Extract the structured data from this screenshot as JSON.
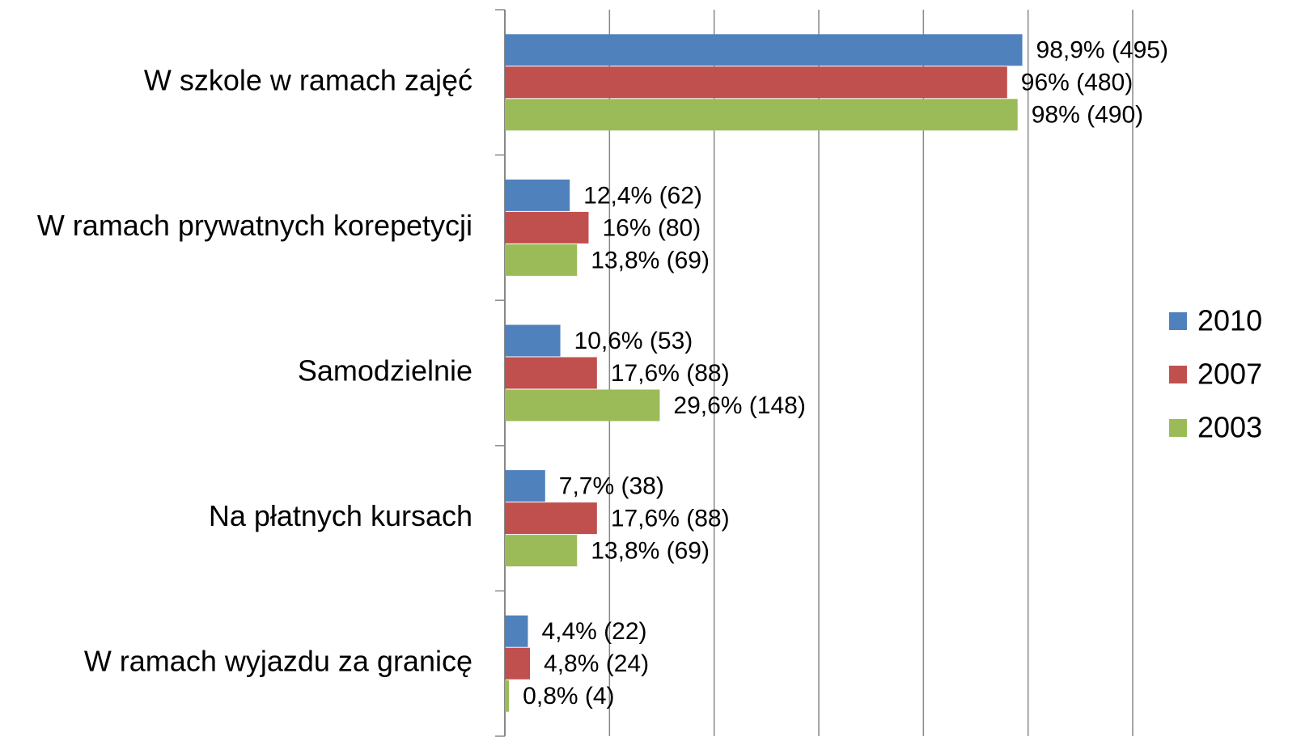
{
  "chart_data": {
    "type": "hbar",
    "categories": [
      "W szkole w ramach zajęć",
      "W ramach prywatnych korepetycji",
      "Samodzielnie",
      "Na płatnych kursach",
      "W ramach wyjazdu za granicę"
    ],
    "series": [
      {
        "name": "2010",
        "color": "#4f81bd",
        "values": [
          98.9,
          12.4,
          10.6,
          7.7,
          4.4
        ],
        "value_labels": [
          "98,9% (495)",
          "12,4% (62)",
          "10,6% (53)",
          "7,7% (38)",
          "4,4% (22)"
        ]
      },
      {
        "name": "2007",
        "color": "#c0504d",
        "values": [
          96,
          16,
          17.6,
          17.6,
          4.8
        ],
        "value_labels": [
          "96% (480)",
          "16% (80)",
          "17,6% (88)",
          "17,6% (88)",
          "4,8% (24)"
        ]
      },
      {
        "name": "2003",
        "color": "#9bbb59",
        "values": [
          98,
          13.8,
          29.6,
          13.8,
          0.8
        ],
        "value_labels": [
          "98% (490)",
          "13,8% (69)",
          "29,6% (148)",
          "13,8% (69)",
          "0,8% (4)"
        ]
      }
    ],
    "xlim": [
      0,
      120
    ],
    "xticks": [
      0,
      20,
      40,
      60,
      80,
      100,
      120
    ],
    "grid": true,
    "legend": "right"
  }
}
